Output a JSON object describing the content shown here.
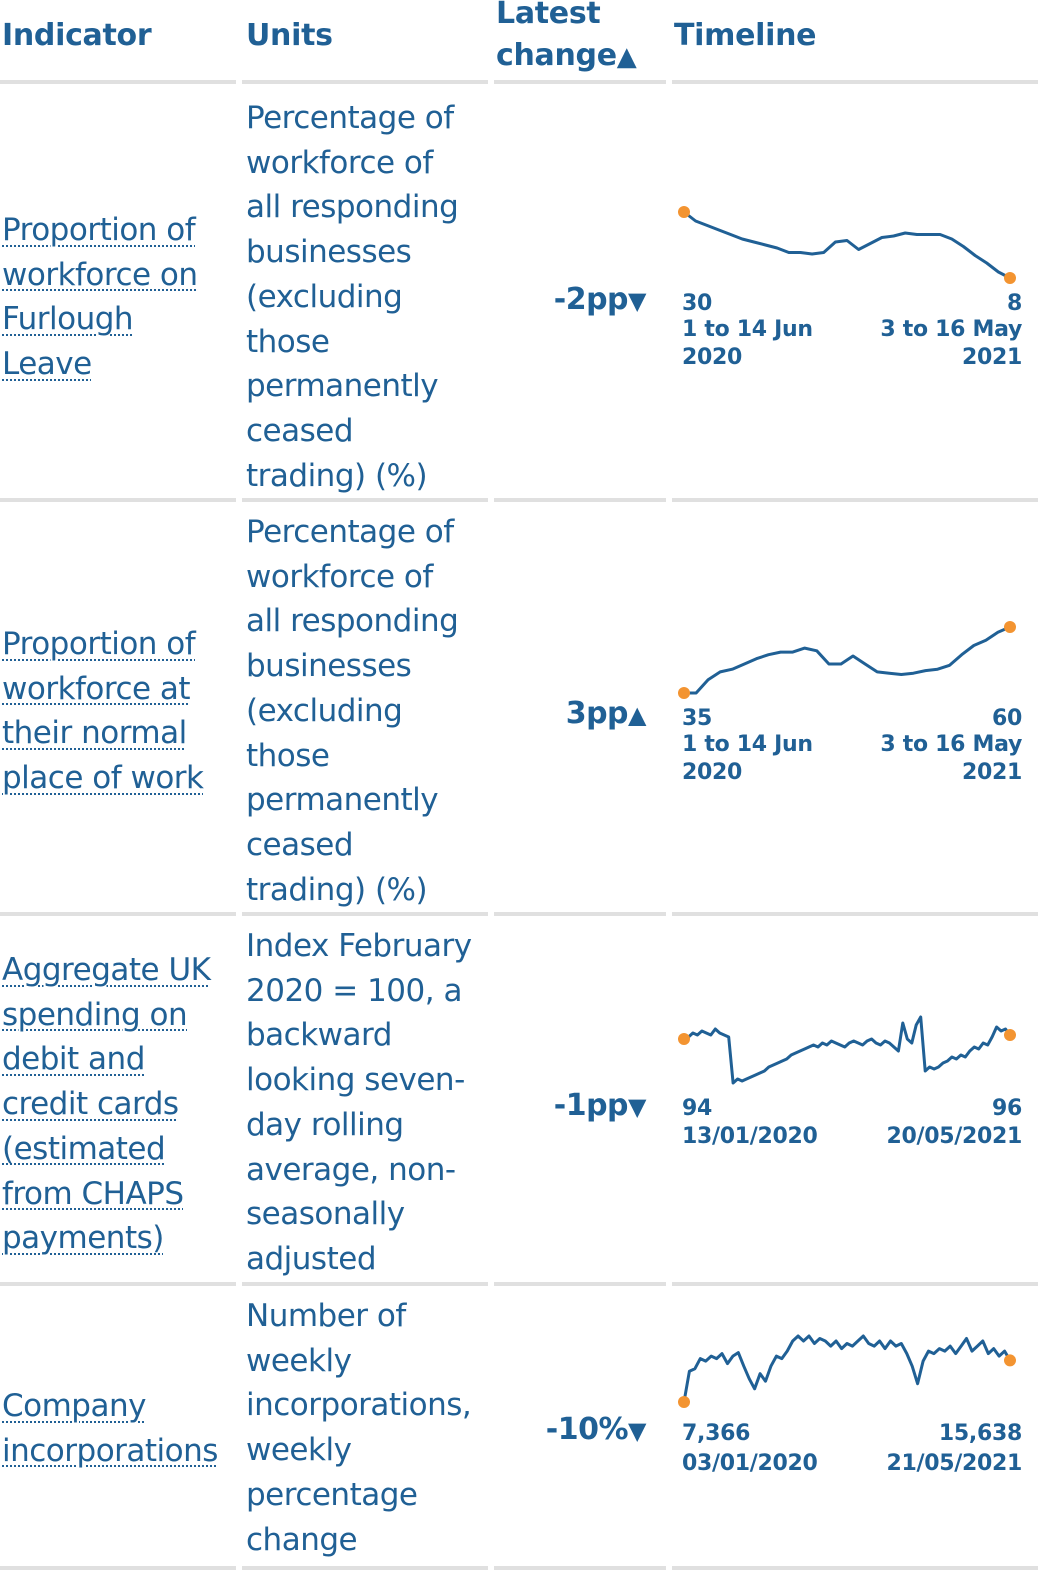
{
  "headers": {
    "indicator": "Indicator",
    "units": "Units",
    "latest_change_line1": "Latest",
    "latest_change_line2": "change",
    "sort_arrow": "▲",
    "timeline": "Timeline"
  },
  "colors": {
    "text": "#206095",
    "line": "#206095",
    "endpoint": "#f39431",
    "rule": "#e0e0e0"
  },
  "rows": [
    {
      "indicator": [
        "Proportion of",
        "workforce on",
        "Furlough",
        "Leave"
      ],
      "units": [
        "Percentage of",
        "workforce of",
        "all responding",
        "businesses",
        "(excluding",
        "those",
        "permanently",
        "ceased",
        "trading) (%)"
      ],
      "change": "-2pp",
      "change_arrow": "▼",
      "start_value": "30",
      "end_value": "8",
      "start_date": [
        "1 to 14 Jun",
        "2020"
      ],
      "end_date": [
        "3 to 16 May",
        "2021"
      ],
      "series": [
        30,
        27,
        25.5,
        24,
        22.5,
        21,
        20,
        19,
        18,
        16.5,
        16.5,
        16,
        16.5,
        20,
        20.5,
        17.5,
        19.5,
        21.5,
        22,
        23,
        22.5,
        22.5,
        22.5,
        21,
        18.5,
        15.5,
        13,
        10,
        8
      ]
    },
    {
      "indicator": [
        "Proportion of",
        "workforce at",
        "their normal",
        "place of work"
      ],
      "units": [
        "Percentage of",
        "workforce of",
        "all responding",
        "businesses",
        "(excluding",
        "those",
        "permanently",
        "ceased",
        "trading) (%)"
      ],
      "change": "3pp",
      "change_arrow": "▲",
      "start_value": "35",
      "end_value": "60",
      "start_date": [
        "1 to 14 Jun",
        "2020"
      ],
      "end_date": [
        "3 to 16 May",
        "2021"
      ],
      "series": [
        35,
        35,
        40,
        43,
        44,
        46,
        48,
        49.5,
        50.5,
        50.5,
        52,
        51,
        46,
        46,
        49,
        46,
        43,
        42.5,
        42,
        42.5,
        43.5,
        44,
        45.5,
        49.5,
        53,
        55,
        58,
        60
      ]
    },
    {
      "indicator": [
        "Aggregate UK",
        "spending on",
        "debit and",
        "credit cards",
        "(estimated",
        "from CHAPS",
        "payments)"
      ],
      "units": [
        "Index February",
        "2020 = 100, a",
        "backward",
        "looking seven-",
        "day rolling",
        "average, non-",
        "seasonally",
        "adjusted"
      ],
      "change": "-1pp",
      "change_arrow": "▼",
      "start_value": "94",
      "end_value": "96",
      "start_date": [
        "13/01/2020"
      ],
      "end_date": [
        "20/05/2021"
      ],
      "series": [
        94,
        95,
        97,
        96,
        98,
        97,
        96,
        99,
        97,
        96,
        95,
        72,
        74,
        73,
        74,
        75,
        76,
        77,
        78,
        80,
        81,
        82,
        83,
        84,
        86,
        87,
        88,
        89,
        90,
        91,
        90,
        92,
        91,
        93,
        92,
        91,
        90,
        92,
        93,
        92,
        91,
        93,
        94,
        92,
        91,
        93,
        92,
        90,
        88,
        102,
        94,
        92,
        101,
        105,
        78,
        80,
        79,
        80,
        82,
        83,
        85,
        84,
        86,
        85,
        88,
        90,
        89,
        92,
        91,
        95,
        100,
        98,
        99,
        96
      ]
    },
    {
      "indicator": [
        "Company",
        "incorporations"
      ],
      "units": [
        "Number of",
        "weekly",
        "incorporations,",
        "weekly",
        "percentage",
        "change"
      ],
      "change": "-10%",
      "change_arrow": "▼",
      "start_value": "7,366",
      "end_value": "15,638",
      "start_date": [
        "03/01/2020"
      ],
      "end_date": [
        "21/05/2021"
      ],
      "series": [
        7366,
        13500,
        14000,
        16000,
        15500,
        16500,
        16000,
        17000,
        15000,
        16500,
        17200,
        14500,
        12000,
        10000,
        13000,
        11500,
        14500,
        16500,
        16000,
        17500,
        19500,
        20500,
        19500,
        20500,
        19000,
        20000,
        19500,
        18500,
        19500,
        18000,
        19000,
        18500,
        19500,
        20500,
        19000,
        18500,
        19500,
        18000,
        19500,
        18500,
        19000,
        17000,
        14500,
        11000,
        15500,
        17500,
        17000,
        18000,
        17500,
        18500,
        17000,
        18500,
        20000,
        17500,
        18500,
        19500,
        17000,
        18000,
        16500,
        17500,
        15638
      ]
    }
  ]
}
